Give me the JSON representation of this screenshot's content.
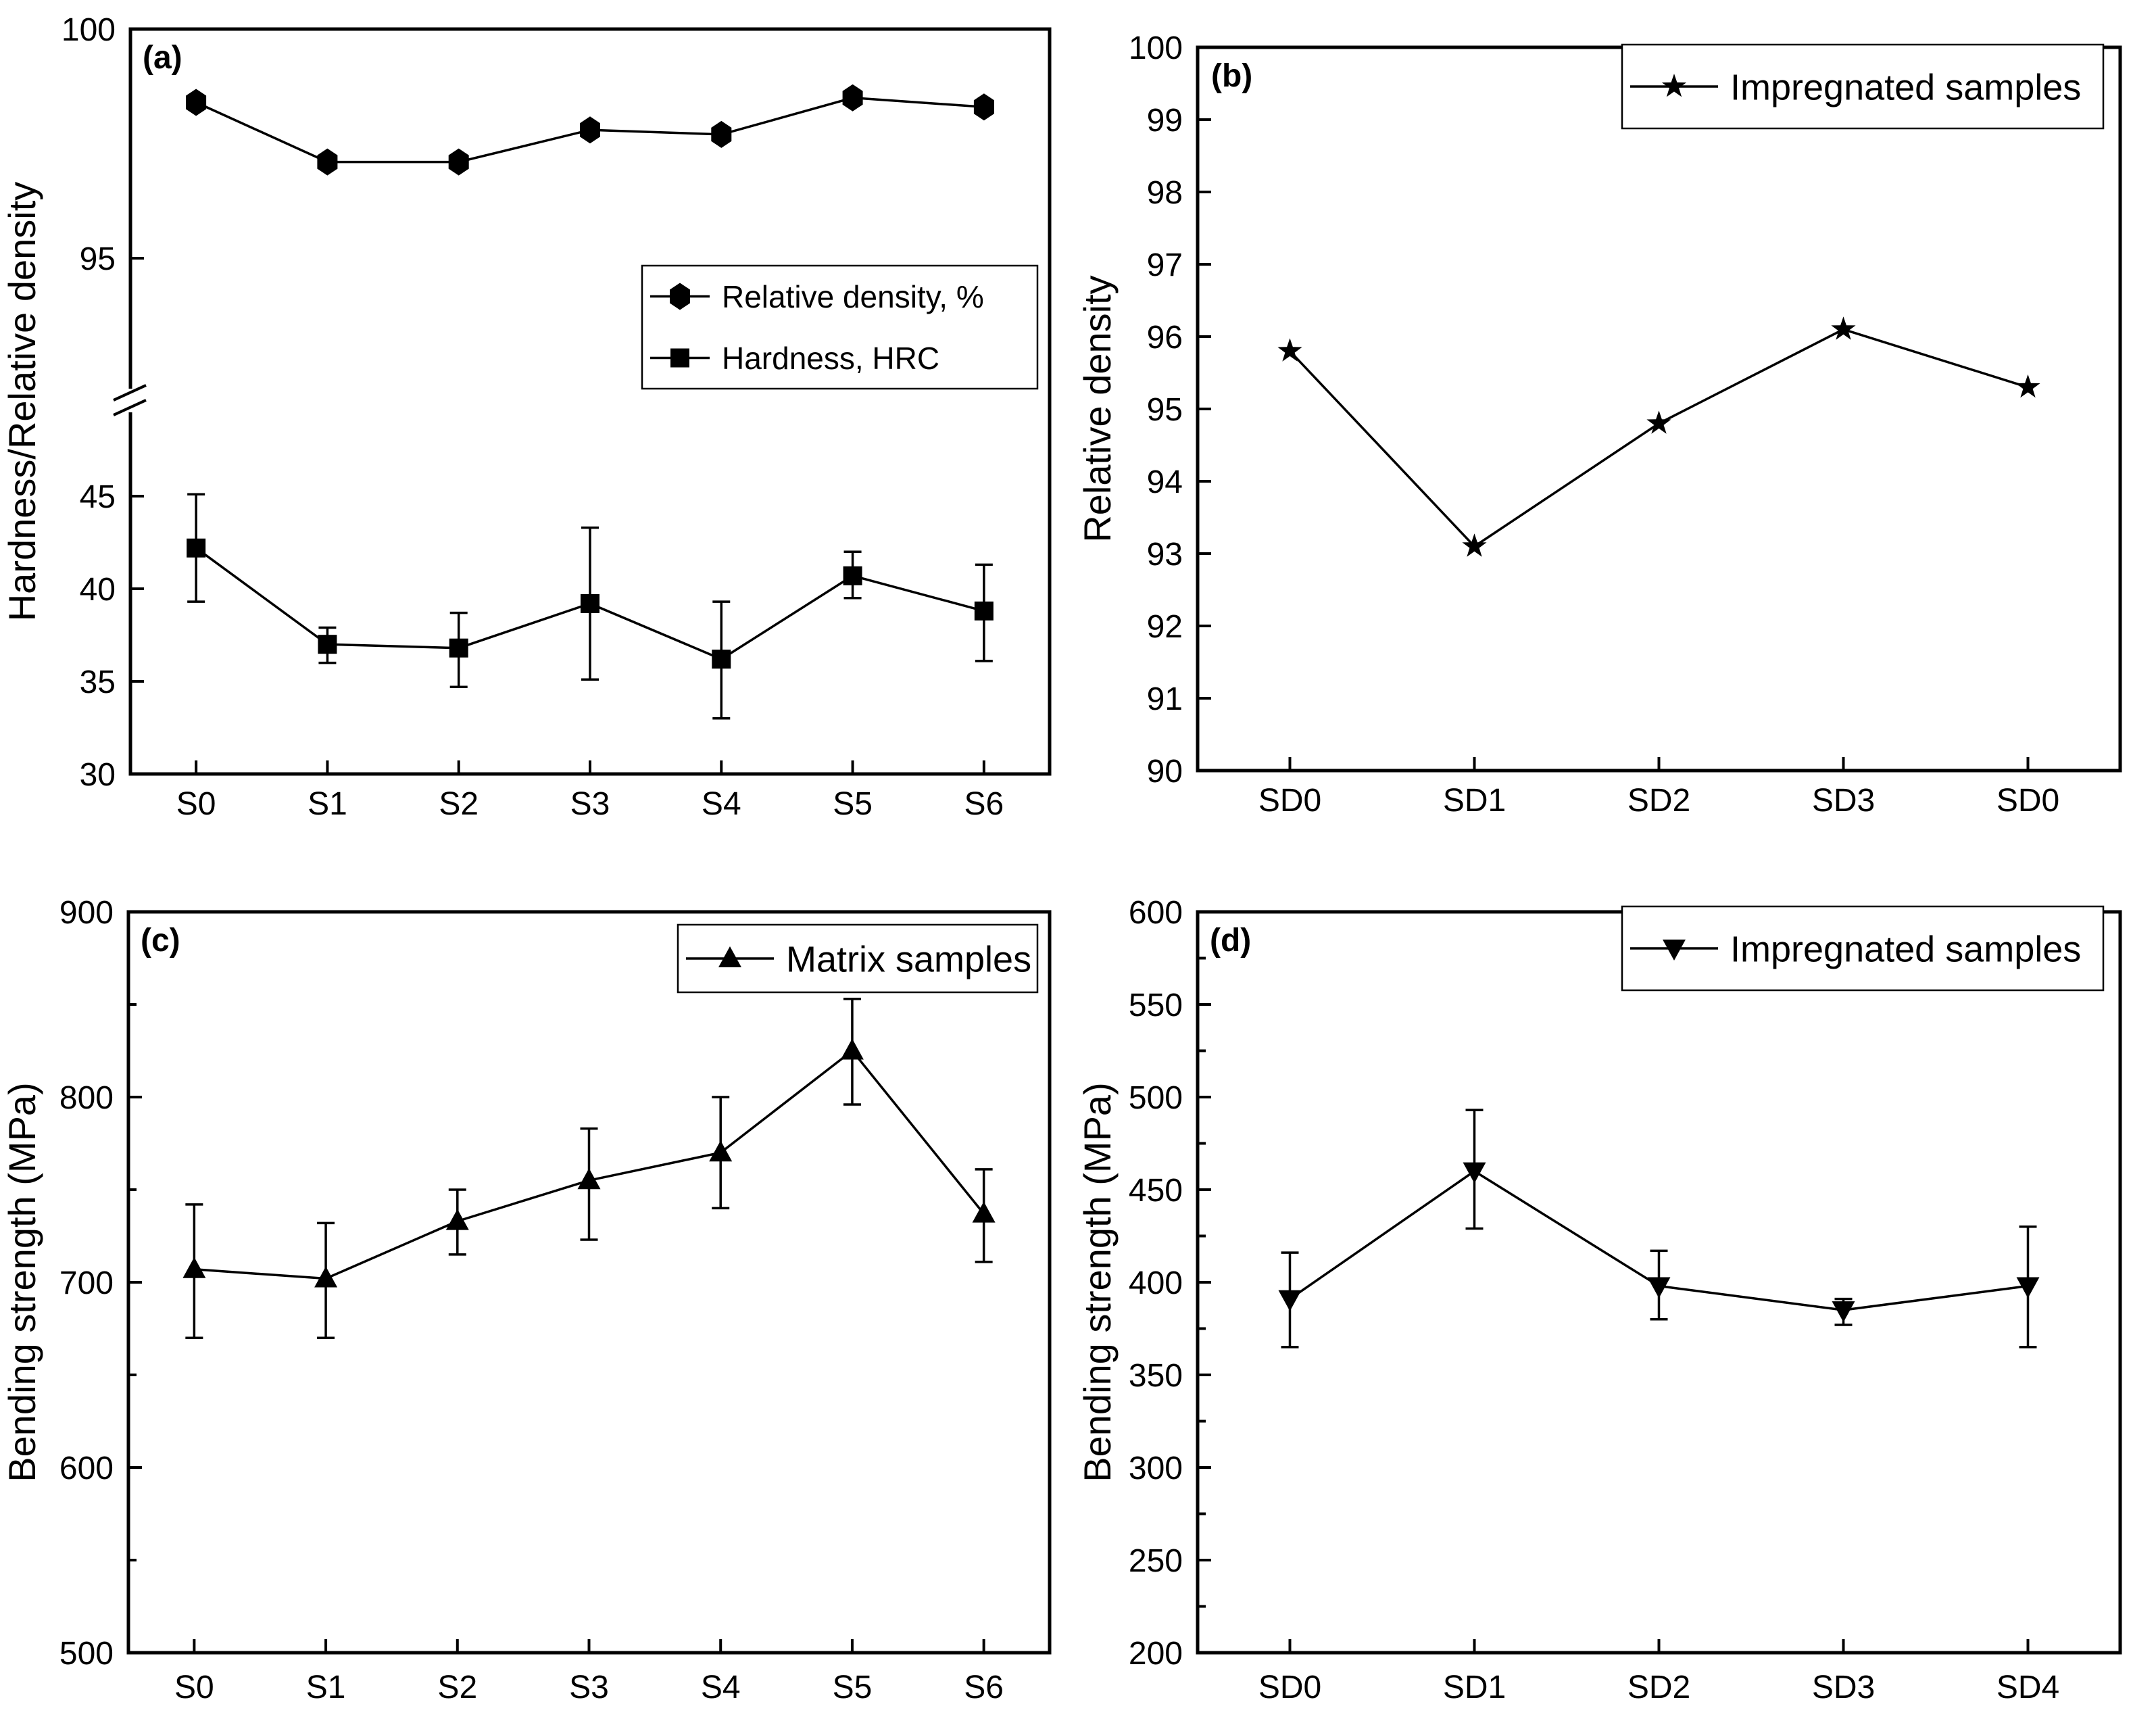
{
  "figure": {
    "background": "#ffffff",
    "line_color": "#000000",
    "grid": "off"
  },
  "chart_data": [
    {
      "id": "a",
      "type": "line",
      "panel_label": "(a)",
      "xlabel": "",
      "ylabel": "Hardness/Relative density",
      "categories": [
        "S0",
        "S1",
        "S2",
        "S3",
        "S4",
        "S5",
        "S6"
      ],
      "axis_break": {
        "segments": [
          {
            "ylim": [
              92.1,
              100
            ],
            "ticks": [
              100,
              95
            ],
            "minor_ticks": []
          },
          {
            "ylim": [
              30,
              49.5
            ],
            "ticks": [
              45,
              40,
              35,
              30
            ],
            "minor_ticks": []
          }
        ]
      },
      "series": [
        {
          "name": "Relative density, %",
          "marker": "hexagon",
          "segment": 0,
          "values": [
            98.4,
            97.1,
            97.1,
            97.8,
            97.7,
            98.5,
            98.3
          ]
        },
        {
          "name": "Hardness, HRC",
          "marker": "square",
          "segment": 1,
          "values": [
            42.2,
            37.0,
            36.8,
            39.2,
            36.2,
            40.7,
            38.8
          ],
          "errors_up": [
            2.9,
            0.9,
            1.9,
            4.1,
            3.1,
            1.3,
            2.5
          ],
          "errors_down": [
            2.9,
            1.0,
            2.1,
            4.1,
            3.2,
            1.2,
            2.7
          ]
        }
      ],
      "legend": {
        "position": "middle-right",
        "entries": [
          "Relative density, %",
          "Hardness, HRC"
        ]
      }
    },
    {
      "id": "b",
      "type": "line",
      "panel_label": "(b)",
      "xlabel": "",
      "ylabel": "Relative density",
      "categories": [
        "SD0",
        "SD1",
        "SD2",
        "SD3",
        "SD0"
      ],
      "ylim": [
        90,
        100
      ],
      "ytick_major": 1,
      "ytick_minor": null,
      "series": [
        {
          "name": "Impregnated samples",
          "marker": "star",
          "values": [
            95.8,
            93.1,
            94.8,
            96.1,
            95.3
          ]
        }
      ],
      "legend": {
        "position": "top-right",
        "entries": [
          "Impregnated samples"
        ]
      }
    },
    {
      "id": "c",
      "type": "line",
      "panel_label": "(c)",
      "xlabel": "",
      "ylabel": "Bending strength (MPa)",
      "categories": [
        "S0",
        "S1",
        "S2",
        "S3",
        "S4",
        "S5",
        "S6"
      ],
      "ylim": [
        500,
        900
      ],
      "ytick_major": 100,
      "ytick_minor": 50,
      "series": [
        {
          "name": "Matrix samples",
          "marker": "triangle-up",
          "values": [
            707,
            702,
            733,
            755,
            770,
            825,
            737
          ],
          "errors_up": [
            35,
            30,
            17,
            28,
            30,
            28,
            24
          ],
          "errors_down": [
            37,
            32,
            18,
            32,
            30,
            29,
            26
          ]
        }
      ],
      "legend": {
        "position": "top-right",
        "entries": [
          "Matrix samples"
        ]
      }
    },
    {
      "id": "d",
      "type": "line",
      "panel_label": "(d)",
      "xlabel": "",
      "ylabel": "Bending strength (MPa)",
      "categories": [
        "SD0",
        "SD1",
        "SD2",
        "SD3",
        "SD4"
      ],
      "ylim": [
        200,
        600
      ],
      "ytick_major": 50,
      "ytick_minor": 25,
      "series": [
        {
          "name": "Impregnated samples",
          "marker": "triangle-down",
          "values": [
            391,
            460,
            398,
            385,
            398
          ],
          "errors_up": [
            25,
            33,
            19,
            6,
            32
          ],
          "errors_down": [
            26,
            31,
            18,
            8,
            33
          ]
        }
      ],
      "legend": {
        "position": "top-right",
        "entries": [
          "Impregnated samples"
        ]
      }
    }
  ]
}
